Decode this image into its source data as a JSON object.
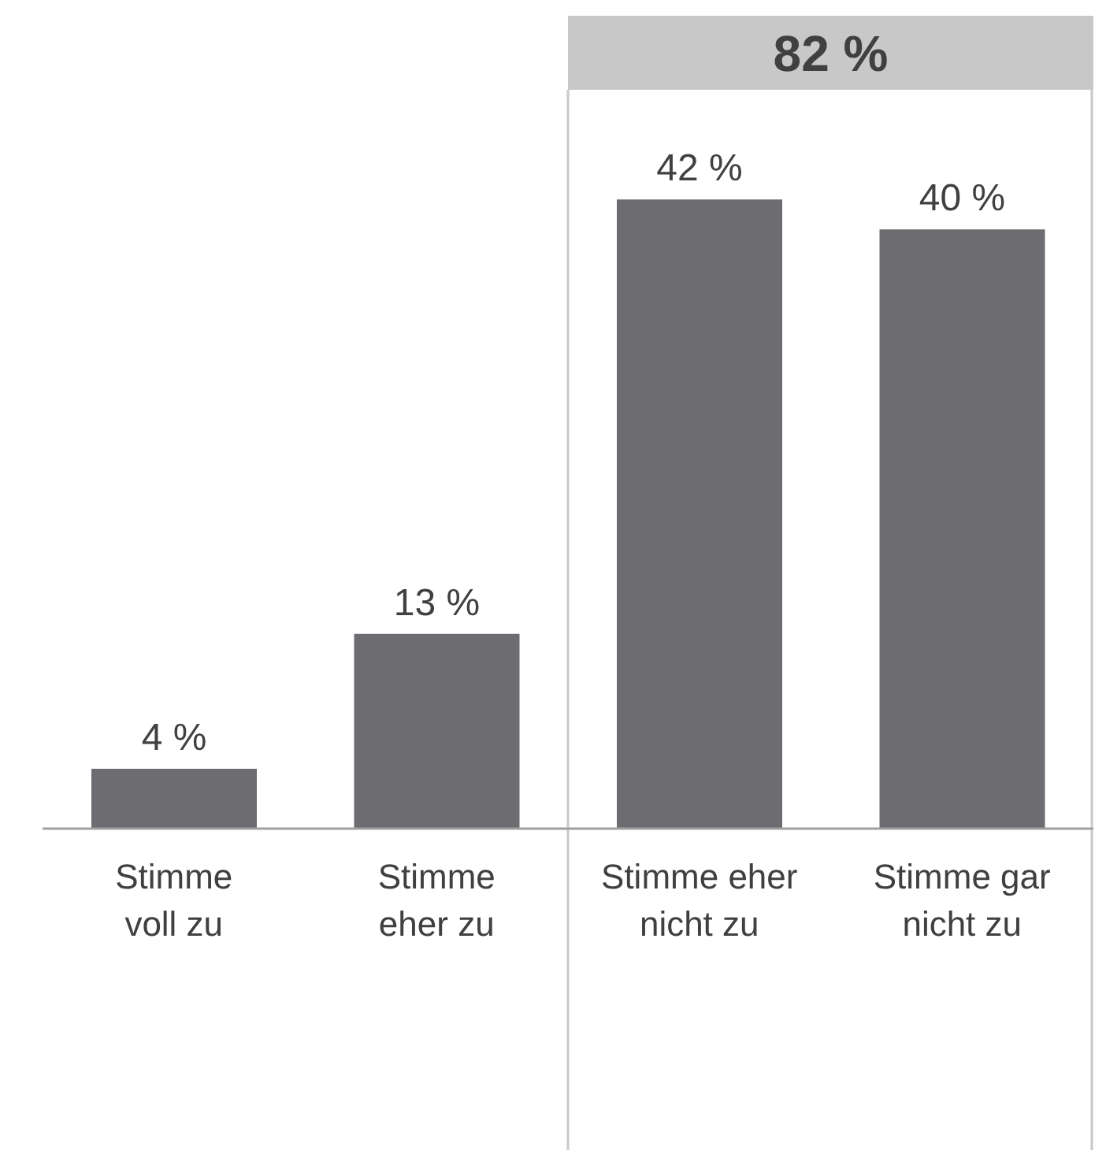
{
  "chart_data": {
    "type": "bar",
    "categories": [
      "Stimme\nvoll zu",
      "Stimme\neher zu",
      "Stimme eher\nnicht zu",
      "Stimme gar\nnicht zu"
    ],
    "values": [
      4,
      13,
      42,
      40
    ],
    "value_labels": [
      "4 %",
      "13 %",
      "42 %",
      "40 %"
    ],
    "color": "#6d6d71",
    "ylim": [
      0,
      49
    ],
    "annotations": [
      "82 %"
    ],
    "grid": false,
    "legend": false
  }
}
